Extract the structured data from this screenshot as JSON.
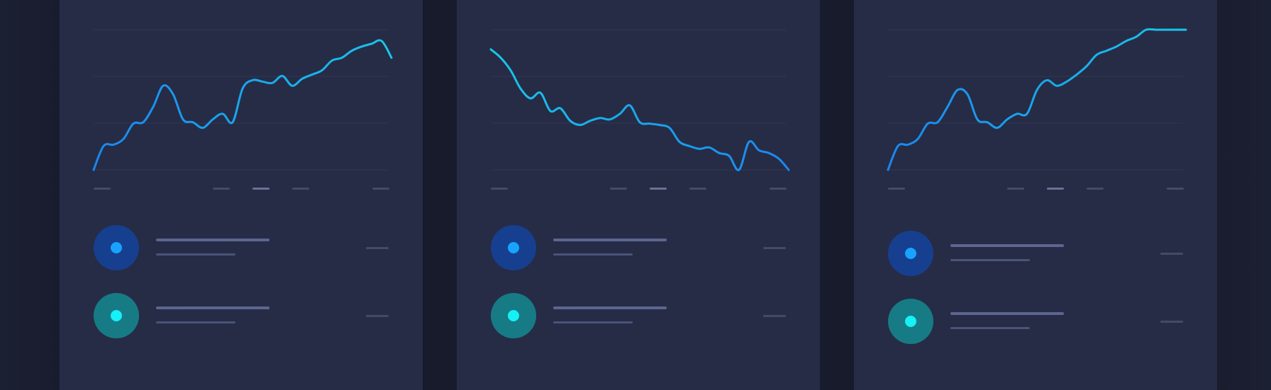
{
  "colors": {
    "background": "#181b2c",
    "panel": "#262c46",
    "grid": "#323954",
    "line_blue": "#1a86f0",
    "line_cyan": "#19c6ea",
    "legend_blue_bg": "#173f8f",
    "legend_blue_dot": "#17a3ff",
    "legend_teal_bg": "#177b86",
    "legend_teal_dot": "#16f0f6"
  },
  "chart_data": [
    {
      "type": "line",
      "title": "",
      "xlabel": "",
      "ylabel": "",
      "grid": true,
      "ylim": [
        0,
        100
      ],
      "x": [
        0,
        1,
        2,
        3,
        4,
        5,
        6,
        7,
        8,
        9,
        10,
        11,
        12,
        13,
        14,
        15,
        16,
        17,
        18,
        19,
        20,
        21,
        22,
        23,
        24,
        25,
        26,
        27,
        28,
        29,
        30
      ],
      "series": [
        {
          "color": "#1a86f0",
          "values": [
            0,
            17,
            18,
            22,
            33,
            34,
            45,
            60,
            54,
            36,
            34,
            30,
            36,
            40,
            34,
            58,
            64,
            63,
            62,
            67,
            60,
            65,
            68,
            71,
            78,
            80,
            85,
            88,
            90,
            92,
            80
          ]
        }
      ],
      "x_ticks_shown": 5,
      "active_tick": 2
    },
    {
      "type": "line",
      "title": "",
      "xlabel": "",
      "ylabel": "",
      "grid": true,
      "ylim": [
        0,
        100
      ],
      "x": [
        0,
        1,
        2,
        3,
        4,
        5,
        6,
        7,
        8,
        9,
        10,
        11,
        12,
        13,
        14,
        15,
        16,
        17,
        18,
        19,
        20,
        21,
        22,
        23,
        24,
        25,
        26,
        27,
        28,
        29,
        30
      ],
      "series": [
        {
          "color": "#19c6ea",
          "values": [
            86,
            80,
            71,
            58,
            51,
            55,
            42,
            44,
            35,
            32,
            35,
            37,
            36,
            40,
            46,
            34,
            33,
            32,
            30,
            20,
            17,
            15,
            16,
            12,
            10,
            0,
            20,
            14,
            12,
            8,
            0
          ]
        }
      ],
      "x_ticks_shown": 5,
      "active_tick": 2
    },
    {
      "type": "line",
      "title": "",
      "xlabel": "",
      "ylabel": "",
      "grid": true,
      "ylim": [
        0,
        100
      ],
      "x": [
        0,
        1,
        2,
        3,
        4,
        5,
        6,
        7,
        8,
        9,
        10,
        11,
        12,
        13,
        14,
        15,
        16,
        17,
        18,
        19,
        20,
        21,
        22,
        23,
        24,
        25,
        26,
        27,
        28,
        29,
        30
      ],
      "series": [
        {
          "color": "#1a86f0",
          "values": [
            0,
            17,
            18,
            22,
            33,
            34,
            45,
            57,
            54,
            36,
            34,
            30,
            36,
            40,
            40,
            57,
            64,
            60,
            63,
            68,
            74,
            82,
            85,
            88,
            92,
            95,
            100,
            100,
            100,
            100,
            100
          ]
        }
      ],
      "x_ticks_shown": 5,
      "active_tick": 2
    }
  ],
  "panels": [
    {
      "legend": [
        {
          "icon": "series-blue-icon"
        },
        {
          "icon": "series-teal-icon"
        }
      ]
    },
    {
      "legend": [
        {
          "icon": "series-blue-icon"
        },
        {
          "icon": "series-teal-icon"
        }
      ]
    },
    {
      "legend": [
        {
          "icon": "series-blue-icon"
        },
        {
          "icon": "series-teal-icon"
        }
      ]
    }
  ]
}
